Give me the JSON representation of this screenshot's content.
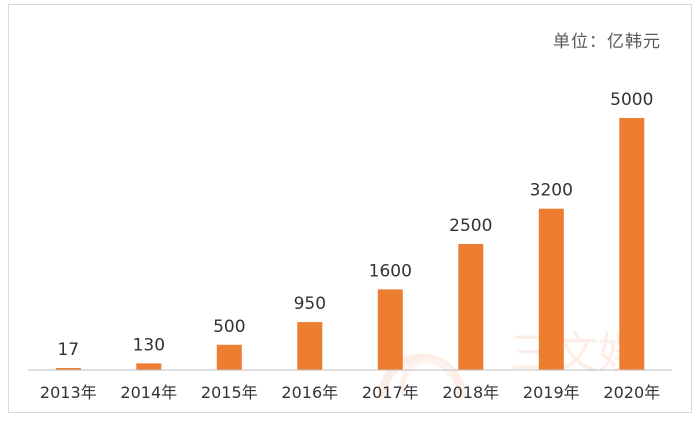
{
  "unit_label": "单位：亿韩元",
  "watermark": "三文娱",
  "chart_data": {
    "type": "bar",
    "categories": [
      "2013年",
      "2014年",
      "2015年",
      "2016年",
      "2017年",
      "2018年",
      "2019年",
      "2020年"
    ],
    "values": [
      17,
      130,
      500,
      950,
      1600,
      2500,
      3200,
      5000
    ],
    "data_labels": [
      "17",
      "130",
      "500",
      "950",
      "1600",
      "2500",
      "3200",
      "5000"
    ],
    "bar_color": "#ED7D31",
    "ylim": [
      0,
      5000
    ],
    "grid": false,
    "legend": "none"
  }
}
